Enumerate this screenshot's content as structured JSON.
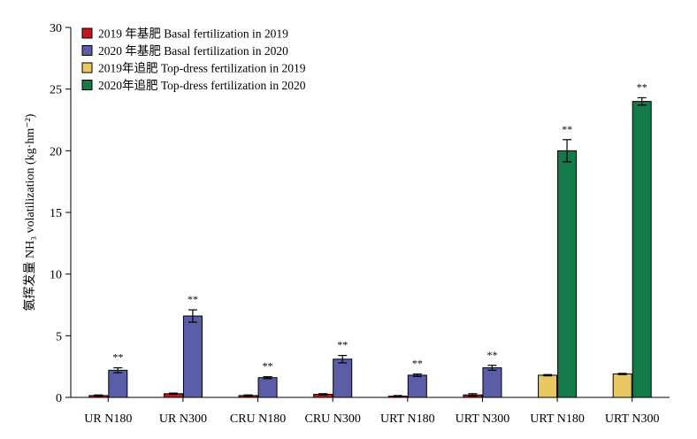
{
  "chart_data": {
    "type": "bar",
    "ylabel": "氨挥发量 NH₃ volatilization (kg·hm⁻²)",
    "ylim": [
      0,
      30
    ],
    "yticks": [
      0,
      5,
      10,
      15,
      20,
      25,
      30
    ],
    "categories": [
      "UR N180",
      "UR N300",
      "CRU N180",
      "CRU N300",
      "URT N180",
      "URT N300",
      "URT N180",
      "URT N300"
    ],
    "legend_position": "top-left",
    "grid": false,
    "series": [
      {
        "name": "2019 年基肥 Basal fertilization in 2019",
        "color": "#c8161d",
        "values": [
          0.15,
          0.3,
          0.15,
          0.25,
          0.1,
          0.2,
          null,
          null
        ],
        "errors": [
          0.05,
          0.05,
          0.05,
          0.05,
          0.05,
          0.1,
          null,
          null
        ],
        "significance": [
          "",
          "",
          "",
          "",
          "",
          "",
          "",
          ""
        ]
      },
      {
        "name": "2020 年基肥 Basal fertilization in 2020",
        "color": "#5b5ea6",
        "values": [
          2.2,
          6.6,
          1.6,
          3.1,
          1.8,
          2.4,
          null,
          null
        ],
        "errors": [
          0.2,
          0.5,
          0.08,
          0.3,
          0.1,
          0.2,
          null,
          null
        ],
        "significance": [
          "**",
          "**",
          "**",
          "**",
          "**",
          "**",
          "",
          ""
        ]
      },
      {
        "name": "2019年追肥 Top-dress fertilization in 2019",
        "color": "#e8c862",
        "values": [
          null,
          null,
          null,
          null,
          null,
          null,
          1.8,
          1.9
        ],
        "errors": [
          null,
          null,
          null,
          null,
          null,
          null,
          0.05,
          0.05
        ],
        "significance": [
          "",
          "",
          "",
          "",
          "",
          "",
          "",
          ""
        ]
      },
      {
        "name": "2020年追肥 Top-dress fertilization in 2020",
        "color": "#157a49",
        "values": [
          null,
          null,
          null,
          null,
          null,
          null,
          20.0,
          24.0
        ],
        "errors": [
          null,
          null,
          null,
          null,
          null,
          null,
          0.9,
          0.3
        ],
        "significance": [
          "",
          "",
          "",
          "",
          "",
          "",
          "**",
          "**"
        ]
      }
    ]
  }
}
